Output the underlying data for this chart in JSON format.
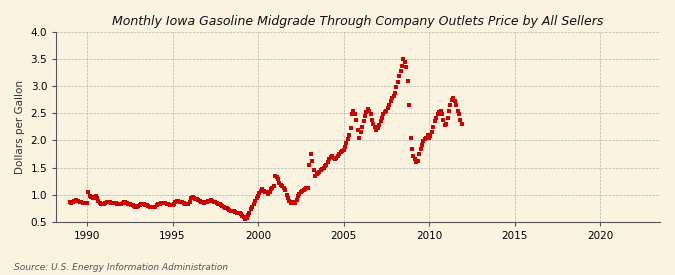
{
  "title": "Monthly Iowa Gasoline Midgrade Through Company Outlets Price by All Sellers",
  "ylabel": "Dollars per Gallon",
  "source": "Source: U.S. Energy Information Administration",
  "background_color": "#faf3e0",
  "plot_bg_color": "#faf3e0",
  "dot_color": "#cc0000",
  "ylim": [
    0.5,
    4.0
  ],
  "xlim": [
    1988.2,
    2023.5
  ],
  "yticks": [
    0.5,
    1.0,
    1.5,
    2.0,
    2.5,
    3.0,
    3.5,
    4.0
  ],
  "xticks": [
    1990,
    1995,
    2000,
    2005,
    2010,
    2015,
    2020
  ],
  "data": [
    [
      1989.0,
      0.87
    ],
    [
      1989.08,
      0.85
    ],
    [
      1989.17,
      0.86
    ],
    [
      1989.25,
      0.88
    ],
    [
      1989.33,
      0.9
    ],
    [
      1989.42,
      0.89
    ],
    [
      1989.5,
      0.88
    ],
    [
      1989.58,
      0.87
    ],
    [
      1989.67,
      0.86
    ],
    [
      1989.75,
      0.85
    ],
    [
      1989.83,
      0.84
    ],
    [
      1989.92,
      0.85
    ],
    [
      1990.0,
      0.84
    ],
    [
      1990.08,
      1.05
    ],
    [
      1990.17,
      0.97
    ],
    [
      1990.25,
      0.95
    ],
    [
      1990.33,
      0.94
    ],
    [
      1990.42,
      0.96
    ],
    [
      1990.5,
      0.98
    ],
    [
      1990.58,
      0.93
    ],
    [
      1990.67,
      0.88
    ],
    [
      1990.75,
      0.84
    ],
    [
      1990.83,
      0.83
    ],
    [
      1990.92,
      0.82
    ],
    [
      1991.0,
      0.82
    ],
    [
      1991.08,
      0.84
    ],
    [
      1991.17,
      0.86
    ],
    [
      1991.25,
      0.87
    ],
    [
      1991.33,
      0.86
    ],
    [
      1991.42,
      0.85
    ],
    [
      1991.5,
      0.84
    ],
    [
      1991.58,
      0.85
    ],
    [
      1991.67,
      0.84
    ],
    [
      1991.75,
      0.83
    ],
    [
      1991.83,
      0.82
    ],
    [
      1991.92,
      0.82
    ],
    [
      1992.0,
      0.83
    ],
    [
      1992.08,
      0.85
    ],
    [
      1992.17,
      0.87
    ],
    [
      1992.25,
      0.86
    ],
    [
      1992.33,
      0.85
    ],
    [
      1992.42,
      0.83
    ],
    [
      1992.5,
      0.82
    ],
    [
      1992.58,
      0.81
    ],
    [
      1992.67,
      0.8
    ],
    [
      1992.75,
      0.79
    ],
    [
      1992.83,
      0.78
    ],
    [
      1992.92,
      0.78
    ],
    [
      1993.0,
      0.79
    ],
    [
      1993.08,
      0.8
    ],
    [
      1993.17,
      0.82
    ],
    [
      1993.25,
      0.83
    ],
    [
      1993.33,
      0.82
    ],
    [
      1993.42,
      0.81
    ],
    [
      1993.5,
      0.8
    ],
    [
      1993.58,
      0.79
    ],
    [
      1993.67,
      0.78
    ],
    [
      1993.75,
      0.77
    ],
    [
      1993.83,
      0.77
    ],
    [
      1993.92,
      0.77
    ],
    [
      1994.0,
      0.78
    ],
    [
      1994.08,
      0.8
    ],
    [
      1994.17,
      0.82
    ],
    [
      1994.25,
      0.83
    ],
    [
      1994.33,
      0.84
    ],
    [
      1994.42,
      0.84
    ],
    [
      1994.5,
      0.85
    ],
    [
      1994.58,
      0.84
    ],
    [
      1994.67,
      0.83
    ],
    [
      1994.75,
      0.82
    ],
    [
      1994.83,
      0.81
    ],
    [
      1994.92,
      0.8
    ],
    [
      1995.0,
      0.81
    ],
    [
      1995.08,
      0.83
    ],
    [
      1995.17,
      0.86
    ],
    [
      1995.25,
      0.88
    ],
    [
      1995.33,
      0.88
    ],
    [
      1995.42,
      0.87
    ],
    [
      1995.5,
      0.87
    ],
    [
      1995.58,
      0.86
    ],
    [
      1995.67,
      0.84
    ],
    [
      1995.75,
      0.83
    ],
    [
      1995.83,
      0.82
    ],
    [
      1995.92,
      0.82
    ],
    [
      1996.0,
      0.87
    ],
    [
      1996.08,
      0.93
    ],
    [
      1996.17,
      0.95
    ],
    [
      1996.25,
      0.94
    ],
    [
      1996.33,
      0.92
    ],
    [
      1996.42,
      0.91
    ],
    [
      1996.5,
      0.9
    ],
    [
      1996.58,
      0.88
    ],
    [
      1996.67,
      0.87
    ],
    [
      1996.75,
      0.86
    ],
    [
      1996.83,
      0.85
    ],
    [
      1996.92,
      0.86
    ],
    [
      1997.0,
      0.87
    ],
    [
      1997.08,
      0.88
    ],
    [
      1997.17,
      0.89
    ],
    [
      1997.25,
      0.9
    ],
    [
      1997.33,
      0.89
    ],
    [
      1997.42,
      0.87
    ],
    [
      1997.5,
      0.86
    ],
    [
      1997.58,
      0.84
    ],
    [
      1997.67,
      0.83
    ],
    [
      1997.75,
      0.82
    ],
    [
      1997.83,
      0.8
    ],
    [
      1997.92,
      0.79
    ],
    [
      1998.0,
      0.78
    ],
    [
      1998.08,
      0.76
    ],
    [
      1998.17,
      0.75
    ],
    [
      1998.25,
      0.73
    ],
    [
      1998.33,
      0.71
    ],
    [
      1998.42,
      0.7
    ],
    [
      1998.5,
      0.7
    ],
    [
      1998.58,
      0.69
    ],
    [
      1998.67,
      0.68
    ],
    [
      1998.75,
      0.67
    ],
    [
      1998.83,
      0.67
    ],
    [
      1998.92,
      0.66
    ],
    [
      1999.0,
      0.65
    ],
    [
      1999.08,
      0.61
    ],
    [
      1999.17,
      0.58
    ],
    [
      1999.25,
      0.55
    ],
    [
      1999.33,
      0.57
    ],
    [
      1999.42,
      0.62
    ],
    [
      1999.5,
      0.67
    ],
    [
      1999.58,
      0.73
    ],
    [
      1999.67,
      0.78
    ],
    [
      1999.75,
      0.83
    ],
    [
      1999.83,
      0.88
    ],
    [
      1999.92,
      0.93
    ],
    [
      2000.0,
      0.97
    ],
    [
      2000.08,
      1.03
    ],
    [
      2000.17,
      1.06
    ],
    [
      2000.25,
      1.1
    ],
    [
      2000.33,
      1.07
    ],
    [
      2000.42,
      1.05
    ],
    [
      2000.5,
      1.04
    ],
    [
      2000.58,
      1.02
    ],
    [
      2000.67,
      1.05
    ],
    [
      2000.75,
      1.1
    ],
    [
      2000.83,
      1.12
    ],
    [
      2000.92,
      1.15
    ],
    [
      2001.0,
      1.35
    ],
    [
      2001.08,
      1.32
    ],
    [
      2001.17,
      1.28
    ],
    [
      2001.25,
      1.22
    ],
    [
      2001.33,
      1.18
    ],
    [
      2001.42,
      1.15
    ],
    [
      2001.5,
      1.12
    ],
    [
      2001.58,
      1.08
    ],
    [
      2001.67,
      1.0
    ],
    [
      2001.75,
      0.93
    ],
    [
      2001.83,
      0.88
    ],
    [
      2001.92,
      0.85
    ],
    [
      2002.0,
      0.87
    ],
    [
      2002.08,
      0.86
    ],
    [
      2002.17,
      0.85
    ],
    [
      2002.25,
      0.9
    ],
    [
      2002.33,
      0.97
    ],
    [
      2002.42,
      1.02
    ],
    [
      2002.5,
      1.05
    ],
    [
      2002.58,
      1.07
    ],
    [
      2002.67,
      1.08
    ],
    [
      2002.75,
      1.1
    ],
    [
      2002.83,
      1.12
    ],
    [
      2002.92,
      1.13
    ],
    [
      2003.0,
      1.55
    ],
    [
      2003.08,
      1.75
    ],
    [
      2003.17,
      1.62
    ],
    [
      2003.25,
      1.45
    ],
    [
      2003.33,
      1.35
    ],
    [
      2003.42,
      1.38
    ],
    [
      2003.5,
      1.4
    ],
    [
      2003.58,
      1.42
    ],
    [
      2003.67,
      1.45
    ],
    [
      2003.75,
      1.48
    ],
    [
      2003.83,
      1.5
    ],
    [
      2003.92,
      1.52
    ],
    [
      2004.0,
      1.55
    ],
    [
      2004.08,
      1.6
    ],
    [
      2004.17,
      1.65
    ],
    [
      2004.25,
      1.7
    ],
    [
      2004.33,
      1.72
    ],
    [
      2004.42,
      1.68
    ],
    [
      2004.5,
      1.65
    ],
    [
      2004.58,
      1.68
    ],
    [
      2004.67,
      1.72
    ],
    [
      2004.75,
      1.75
    ],
    [
      2004.83,
      1.78
    ],
    [
      2004.92,
      1.8
    ],
    [
      2005.0,
      1.82
    ],
    [
      2005.08,
      1.88
    ],
    [
      2005.17,
      1.95
    ],
    [
      2005.25,
      2.02
    ],
    [
      2005.33,
      2.1
    ],
    [
      2005.42,
      2.22
    ],
    [
      2005.5,
      2.48
    ],
    [
      2005.58,
      2.55
    ],
    [
      2005.67,
      2.48
    ],
    [
      2005.75,
      2.38
    ],
    [
      2005.83,
      2.2
    ],
    [
      2005.92,
      2.05
    ],
    [
      2006.0,
      2.15
    ],
    [
      2006.08,
      2.25
    ],
    [
      2006.17,
      2.35
    ],
    [
      2006.25,
      2.45
    ],
    [
      2006.33,
      2.52
    ],
    [
      2006.42,
      2.58
    ],
    [
      2006.5,
      2.55
    ],
    [
      2006.58,
      2.48
    ],
    [
      2006.67,
      2.38
    ],
    [
      2006.75,
      2.3
    ],
    [
      2006.83,
      2.25
    ],
    [
      2006.92,
      2.2
    ],
    [
      2007.0,
      2.22
    ],
    [
      2007.08,
      2.28
    ],
    [
      2007.17,
      2.35
    ],
    [
      2007.25,
      2.42
    ],
    [
      2007.33,
      2.48
    ],
    [
      2007.42,
      2.52
    ],
    [
      2007.5,
      2.55
    ],
    [
      2007.58,
      2.6
    ],
    [
      2007.67,
      2.65
    ],
    [
      2007.75,
      2.72
    ],
    [
      2007.83,
      2.78
    ],
    [
      2007.92,
      2.82
    ],
    [
      2008.0,
      2.88
    ],
    [
      2008.08,
      2.98
    ],
    [
      2008.17,
      3.08
    ],
    [
      2008.25,
      3.18
    ],
    [
      2008.33,
      3.28
    ],
    [
      2008.42,
      3.38
    ],
    [
      2008.5,
      3.5
    ],
    [
      2008.58,
      3.45
    ],
    [
      2008.67,
      3.35
    ],
    [
      2008.75,
      3.1
    ],
    [
      2008.83,
      2.65
    ],
    [
      2008.92,
      2.05
    ],
    [
      2009.0,
      1.85
    ],
    [
      2009.08,
      1.72
    ],
    [
      2009.17,
      1.65
    ],
    [
      2009.25,
      1.6
    ],
    [
      2009.33,
      1.62
    ],
    [
      2009.42,
      1.75
    ],
    [
      2009.5,
      1.85
    ],
    [
      2009.58,
      1.92
    ],
    [
      2009.67,
      1.98
    ],
    [
      2009.75,
      2.02
    ],
    [
      2009.83,
      2.05
    ],
    [
      2009.92,
      2.1
    ],
    [
      2010.0,
      2.05
    ],
    [
      2010.08,
      2.08
    ],
    [
      2010.17,
      2.15
    ],
    [
      2010.25,
      2.25
    ],
    [
      2010.33,
      2.35
    ],
    [
      2010.42,
      2.42
    ],
    [
      2010.5,
      2.48
    ],
    [
      2010.58,
      2.52
    ],
    [
      2010.67,
      2.55
    ],
    [
      2010.75,
      2.48
    ],
    [
      2010.83,
      2.38
    ],
    [
      2010.92,
      2.28
    ],
    [
      2011.0,
      2.3
    ],
    [
      2011.08,
      2.42
    ],
    [
      2011.17,
      2.55
    ],
    [
      2011.25,
      2.65
    ],
    [
      2011.33,
      2.75
    ],
    [
      2011.42,
      2.78
    ],
    [
      2011.5,
      2.72
    ],
    [
      2011.58,
      2.65
    ],
    [
      2011.67,
      2.55
    ],
    [
      2011.75,
      2.48
    ],
    [
      2011.83,
      2.38
    ],
    [
      2011.92,
      2.3
    ]
  ]
}
